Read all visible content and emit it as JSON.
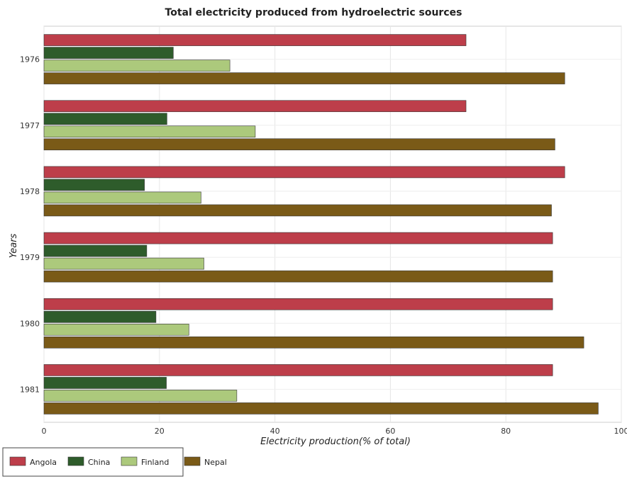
{
  "chart_data": {
    "type": "bar",
    "orientation": "horizontal",
    "title": "Total electricity produced from hydroelectric sources",
    "xlabel": "Electricity production(% of total)",
    "ylabel": "Years",
    "xlim": [
      0,
      100
    ],
    "xticks": [
      "0",
      "20",
      "40",
      "60",
      "80",
      "100"
    ],
    "grid": true,
    "legend_position": "bottom-left",
    "categories": [
      "1976",
      "1977",
      "1978",
      "1979",
      "1980",
      "1981"
    ],
    "series": [
      {
        "name": "Angola",
        "color": "#bd3e4a",
        "values": [
          73.1,
          73.1,
          90.2,
          88.1,
          88.1,
          88.1
        ]
      },
      {
        "name": "China",
        "color": "#2e5c2b",
        "values": [
          22.4,
          21.3,
          17.4,
          17.8,
          19.4,
          21.2
        ]
      },
      {
        "name": "Finland",
        "color": "#acc97c",
        "values": [
          32.2,
          36.6,
          27.2,
          27.7,
          25.1,
          33.4
        ]
      },
      {
        "name": "Nepal",
        "color": "#7a5a17",
        "values": [
          90.2,
          88.5,
          87.9,
          88.1,
          93.5,
          96.0
        ]
      }
    ]
  }
}
